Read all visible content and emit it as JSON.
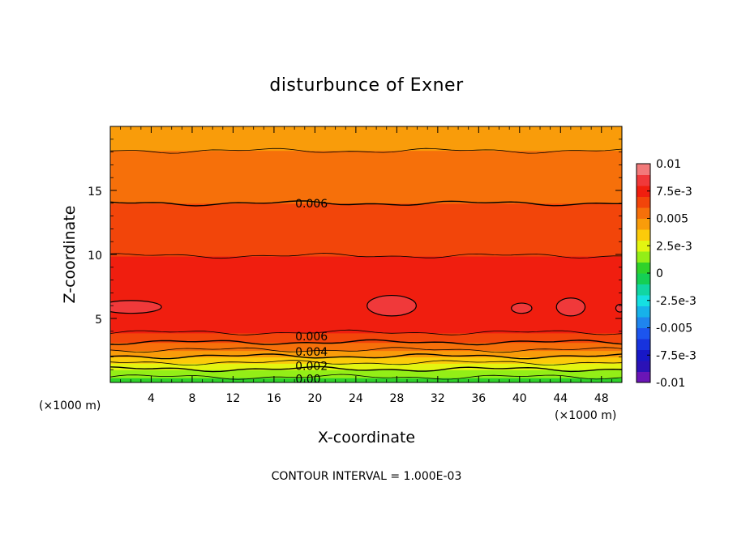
{
  "chart_data": {
    "type": "heatmap",
    "subtype": "filled-contour",
    "title": "disturbunce of Exner",
    "xlabel": "X-coordinate",
    "ylabel": "Z-coordinate",
    "x_unit": "(×1000 m)",
    "y_unit": "(×1000 m)",
    "xlim": [
      0,
      50
    ],
    "ylim": [
      0,
      20
    ],
    "x_ticks": [
      4,
      8,
      12,
      16,
      20,
      24,
      28,
      32,
      36,
      40,
      44,
      48
    ],
    "y_ticks": [
      5,
      10,
      15
    ],
    "note": "CONTOUR INTERVAL = 1.000E-03",
    "contour_labels": [
      {
        "text": "0.006",
        "x": 18,
        "z": 14
      },
      {
        "text": "0.006",
        "x": 18,
        "z": 3.6
      },
      {
        "text": "0.004",
        "x": 18,
        "z": 2.4
      },
      {
        "text": "0.002",
        "x": 18,
        "z": 1.3
      },
      {
        "text": "0.00",
        "x": 18,
        "z": 0.3
      }
    ],
    "colorbar": {
      "min": -0.01,
      "max": 0.01,
      "ticks": [
        {
          "value": 0.01,
          "label": "0.01"
        },
        {
          "value": 0.0075,
          "label": "7.5e-3"
        },
        {
          "value": 0.005,
          "label": "0.005"
        },
        {
          "value": 0.0025,
          "label": "2.5e-3"
        },
        {
          "value": 0,
          "label": "0"
        },
        {
          "value": -0.0025,
          "label": "-2.5e-3"
        },
        {
          "value": -0.005,
          "label": "-0.005"
        },
        {
          "value": -0.0075,
          "label": "-7.5e-3"
        },
        {
          "value": -0.01,
          "label": "-0.01"
        }
      ],
      "levels": [
        {
          "value": 0.009,
          "color": "#f27a7a"
        },
        {
          "value": 0.008,
          "color": "#f0393a"
        },
        {
          "value": 0.007,
          "color": "#f01e0f"
        },
        {
          "value": 0.006,
          "color": "#f2450a"
        },
        {
          "value": 0.005,
          "color": "#f6700a"
        },
        {
          "value": 0.004,
          "color": "#f99c0a"
        },
        {
          "value": 0.003,
          "color": "#fccb0a"
        },
        {
          "value": 0.002,
          "color": "#e3f511"
        },
        {
          "value": 0.001,
          "color": "#93ee17"
        },
        {
          "value": 0.0,
          "color": "#2fd22a"
        },
        {
          "value": -0.001,
          "color": "#15cf55"
        },
        {
          "value": -0.002,
          "color": "#11d6a3"
        },
        {
          "value": -0.003,
          "color": "#15e0e2"
        },
        {
          "value": -0.004,
          "color": "#17b2ea"
        },
        {
          "value": -0.005,
          "color": "#1f85ee"
        },
        {
          "value": -0.006,
          "color": "#1c55ee"
        },
        {
          "value": -0.007,
          "color": "#1733dd"
        },
        {
          "value": -0.008,
          "color": "#1717c6"
        },
        {
          "value": -0.009,
          "color": "#2b12b6"
        },
        {
          "value": -0.01,
          "color": "#6a15b6"
        }
      ]
    },
    "field_profile": [
      {
        "z": 0.0,
        "value": 0.0003
      },
      {
        "z": 0.3,
        "value": 0.0008
      },
      {
        "z": 0.7,
        "value": 0.0014
      },
      {
        "z": 1.1,
        "value": 0.0021
      },
      {
        "z": 1.6,
        "value": 0.0031
      },
      {
        "z": 2.1,
        "value": 0.0041
      },
      {
        "z": 2.6,
        "value": 0.0051
      },
      {
        "z": 3.2,
        "value": 0.0061
      },
      {
        "z": 3.7,
        "value": 0.0068
      },
      {
        "z": 4.3,
        "value": 0.0074
      },
      {
        "z": 5.8,
        "value": 0.0079
      },
      {
        "z": 7.5,
        "value": 0.0077
      },
      {
        "z": 9.5,
        "value": 0.0071
      },
      {
        "z": 11.5,
        "value": 0.0066
      },
      {
        "z": 14.0,
        "value": 0.006
      },
      {
        "z": 16.5,
        "value": 0.0054
      },
      {
        "z": 18.5,
        "value": 0.0049
      },
      {
        "z": 20.0,
        "value": 0.0045
      }
    ],
    "maxima": [
      {
        "x": 2,
        "z": 5.9,
        "rx": 3,
        "rz": 0.5
      },
      {
        "x": 27.5,
        "z": 6.0,
        "rx": 2.4,
        "rz": 0.8
      },
      {
        "x": 40.2,
        "z": 5.8,
        "rx": 1.0,
        "rz": 0.4
      },
      {
        "x": 45,
        "z": 5.9,
        "rx": 1.4,
        "rz": 0.7
      },
      {
        "x": 49.8,
        "z": 5.8,
        "rx": 0.4,
        "rz": 0.3
      }
    ]
  }
}
